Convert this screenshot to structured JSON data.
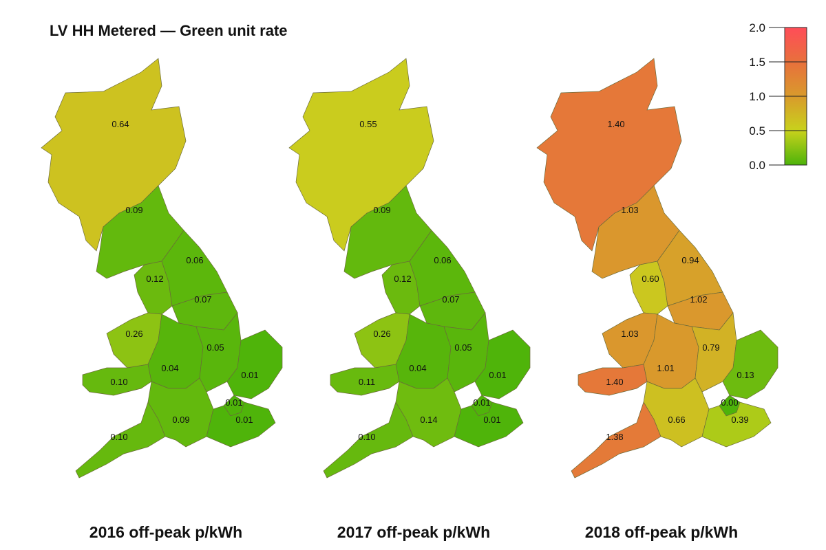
{
  "title": "LV HH Metered — Green unit rate",
  "legend": {
    "ticks": [
      "2.0",
      "1.5",
      "1.0",
      "0.5",
      "0.0"
    ],
    "range": [
      0,
      2
    ],
    "colors": [
      "#4db30a",
      "#c8d21c",
      "#d99a2c",
      "#e8703c",
      "#ff4d58"
    ]
  },
  "maps": [
    {
      "caption": "2016 off-peak p/kWh",
      "regions": {
        "north_scotland": "0.64",
        "south_scotland": "0.09",
        "north_west": "0.12",
        "north_east": "0.06",
        "yorkshire": "0.07",
        "north_wales_merseyside": "0.26",
        "midlands_west": "0.04",
        "midlands_east": "0.05",
        "eastern": "0.01",
        "south_wales": "0.10",
        "southern": "0.09",
        "london": "0.01",
        "south_east": "0.01",
        "south_west": "0.10"
      }
    },
    {
      "caption": "2017 off-peak p/kWh",
      "regions": {
        "north_scotland": "0.55",
        "south_scotland": "0.09",
        "north_west": "0.12",
        "north_east": "0.06",
        "yorkshire": "0.07",
        "north_wales_merseyside": "0.26",
        "midlands_west": "0.04",
        "midlands_east": "0.05",
        "eastern": "0.01",
        "south_wales": "0.11",
        "southern": "0.14",
        "london": "0.01",
        "south_east": "0.01",
        "south_west": "0.10"
      }
    },
    {
      "caption": "2018 off-peak p/kWh",
      "regions": {
        "north_scotland": "1.40",
        "south_scotland": "1.03",
        "north_west": "0.60",
        "north_east": "0.94",
        "yorkshire": "1.02",
        "north_wales_merseyside": "1.03",
        "midlands_west": "1.01",
        "midlands_east": "0.79",
        "eastern": "0.13",
        "south_wales": "1.40",
        "southern": "0.66",
        "london": "0.00",
        "south_east": "0.39",
        "south_west": "1.38"
      }
    }
  ]
}
